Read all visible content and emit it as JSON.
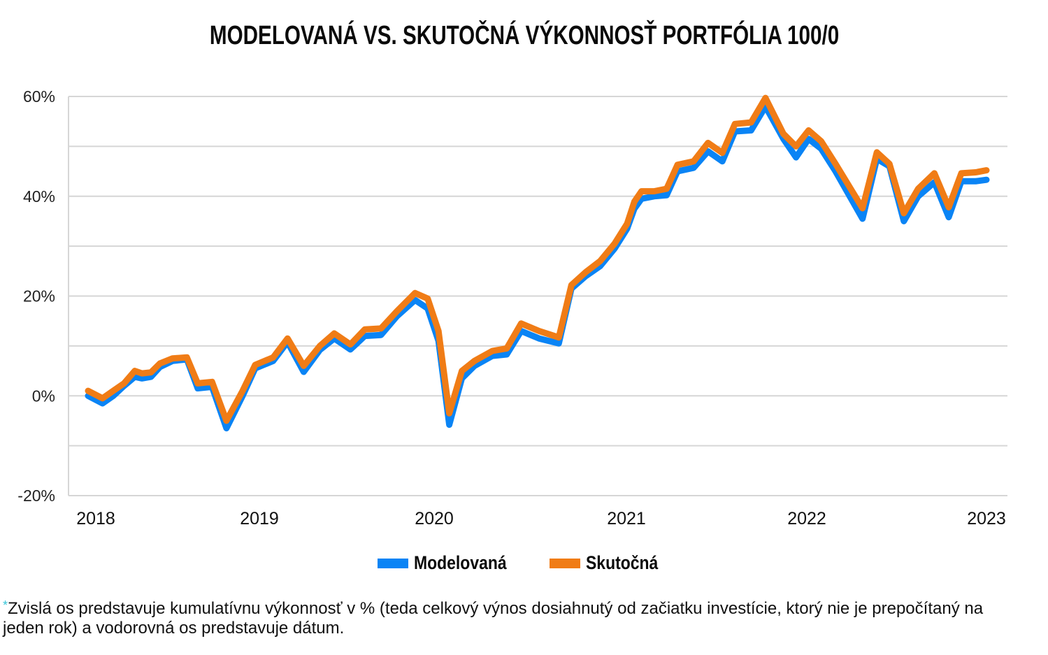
{
  "title": "MODELOVANÁ VS. SKUTOČNÁ VÝKONNOSŤ PORTFÓLIA 100/0",
  "legend": {
    "items": [
      {
        "label": "Modelovaná",
        "color": "#0a84f5"
      },
      {
        "label": "Skutočná",
        "color": "#f07c16"
      }
    ]
  },
  "footnote": {
    "marker": "*",
    "text": "Zvislá os predstavuje kumulatívnu výkonnosť v % (teda celkový výnos dosiahnutý od začiatku investície, ktorý nie je prepočítaný na jeden rok) a vodorovná os predstavuje dátum."
  },
  "chart_data": {
    "type": "line",
    "title": "MODELOVANÁ VS. SKUTOČNÁ VÝKONNOSŤ PORTFÓLIA 100/0",
    "xlabel": "",
    "ylabel": "",
    "ylim": [
      -20,
      60
    ],
    "yticks": [
      "60%",
      "40%",
      "20%",
      "0%",
      "-20%"
    ],
    "ytick_values": [
      60,
      40,
      20,
      0,
      -20
    ],
    "grid_values": [
      60,
      50,
      40,
      30,
      20,
      10,
      0,
      -10,
      -20
    ],
    "xticks": [
      "2018",
      "2019",
      "2020",
      "2021",
      "2022",
      "2023"
    ],
    "grid": true,
    "legend_position": "bottom",
    "x": [
      2018.0,
      2018.08,
      2018.14,
      2018.2,
      2018.26,
      2018.3,
      2018.35,
      2018.4,
      2018.47,
      2018.55,
      2018.61,
      2018.69,
      2018.77,
      2018.86,
      2018.93,
      2019.03,
      2019.11,
      2019.2,
      2019.29,
      2019.37,
      2019.46,
      2019.54,
      2019.63,
      2019.72,
      2019.82,
      2019.89,
      2019.95,
      2020.01,
      2020.08,
      2020.15,
      2020.25,
      2020.33,
      2020.41,
      2020.51,
      2020.62,
      2020.69,
      2020.77,
      2020.85,
      2020.93,
      2021.0,
      2021.04,
      2021.08,
      2021.15,
      2021.22,
      2021.28,
      2021.37,
      2021.45,
      2021.53,
      2021.6,
      2021.69,
      2021.77,
      2021.87,
      2021.94,
      2022.01,
      2022.08,
      2022.16,
      2022.31,
      2022.39,
      2022.46,
      2022.54,
      2022.62,
      2022.71,
      2022.79,
      2022.86,
      2022.94,
      2023.0
    ],
    "series": [
      {
        "name": "Modelovaná",
        "color": "#0a84f5",
        "values": [
          0.0,
          -1.5,
          0.0,
          2.0,
          3.8,
          3.5,
          3.8,
          5.8,
          7.0,
          7.3,
          1.5,
          1.8,
          -6.5,
          0.0,
          5.5,
          7.0,
          10.8,
          4.8,
          9.2,
          11.5,
          9.3,
          12.0,
          12.2,
          16.0,
          19.2,
          17.5,
          11.0,
          -5.8,
          3.5,
          6.0,
          8.0,
          8.3,
          13.0,
          11.5,
          10.5,
          21.5,
          24.0,
          26.0,
          29.5,
          33.5,
          37.5,
          39.5,
          40.0,
          40.2,
          45.0,
          45.7,
          49.0,
          47.0,
          53.0,
          53.2,
          58.0,
          51.5,
          47.8,
          51.5,
          49.5,
          45.0,
          35.5,
          47.5,
          46.0,
          35.0,
          40.0,
          42.8,
          35.8,
          43.0,
          43.0,
          43.3
        ]
      },
      {
        "name": "Skutočná",
        "color": "#f07c16",
        "values": [
          1.0,
          -0.5,
          1.0,
          2.5,
          5.0,
          4.5,
          4.7,
          6.5,
          7.5,
          7.7,
          2.5,
          2.8,
          -5.0,
          1.0,
          6.2,
          7.7,
          11.5,
          6.0,
          10.0,
          12.5,
          10.3,
          13.3,
          13.5,
          17.0,
          20.6,
          19.5,
          13.0,
          -3.5,
          5.0,
          7.0,
          9.0,
          9.5,
          14.5,
          13.0,
          11.7,
          22.2,
          24.8,
          27.0,
          30.5,
          34.5,
          38.9,
          41.0,
          41.0,
          41.5,
          46.3,
          47.0,
          50.7,
          48.7,
          54.5,
          54.8,
          59.7,
          52.5,
          50.0,
          53.2,
          51.0,
          46.5,
          37.6,
          48.8,
          46.5,
          36.6,
          41.5,
          44.6,
          37.8,
          44.6,
          44.8,
          45.2
        ]
      }
    ]
  }
}
